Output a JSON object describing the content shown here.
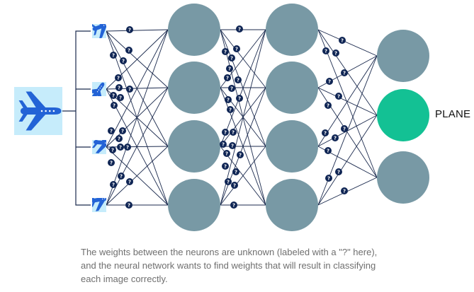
{
  "diagram": {
    "output_label": "PLANE",
    "weight_marker": "?",
    "icon": "airplane-icon",
    "colors": {
      "neuron": "#7899a5",
      "active_neuron": "#13c194",
      "line": "#1b2a4e",
      "marker": "#0f2554",
      "input_bg": "#c6ecfb",
      "plane": "#2363d6"
    },
    "layers": [
      {
        "name": "input",
        "count": 4
      },
      {
        "name": "hidden-1",
        "count": 4
      },
      {
        "name": "hidden-2",
        "count": 4
      },
      {
        "name": "output",
        "count": 3,
        "active_index": 1
      }
    ]
  },
  "caption": {
    "line1": "The weights between the neurons are unknown (labeled with a \"?\" here),",
    "line2": "and the neural network wants to find weights that will result in classifying",
    "line3": "each image correctly."
  }
}
